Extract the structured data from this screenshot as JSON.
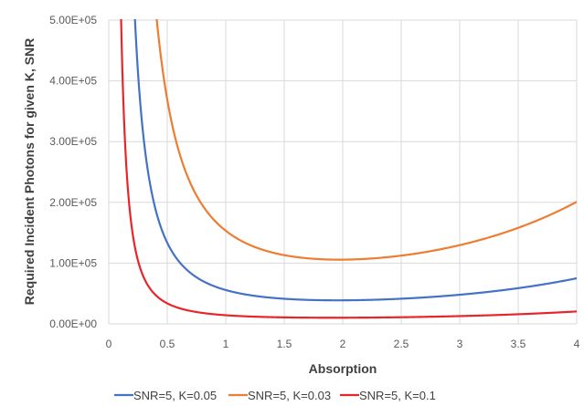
{
  "chart_data": {
    "type": "line",
    "title": "",
    "xlabel": "Absorption",
    "ylabel": "Required Incident Photons for given K, SNR",
    "xlim": [
      0,
      4
    ],
    "ylim": [
      0,
      500000
    ],
    "x_ticks": [
      0,
      0.5,
      1,
      1.5,
      2,
      2.5,
      3,
      3.5,
      4
    ],
    "x_tick_labels": [
      "0",
      "0.5",
      "1",
      "1.5",
      "2",
      "2.5",
      "3",
      "3.5",
      "4"
    ],
    "y_ticks": [
      0,
      100000,
      200000,
      300000,
      400000,
      500000
    ],
    "y_tick_labels": [
      "0.00E+00",
      "1.00E+05",
      "2.00E+05",
      "3.00E+05",
      "4.00E+05",
      "5.00E+05"
    ],
    "grid": {
      "x": true,
      "y": true
    },
    "legend_position": "bottom",
    "series": [
      {
        "name": "SNR=5, K=0.05",
        "color": "#4472c4",
        "snr": 5,
        "k": 0.05
      },
      {
        "name": "SNR=5, K=0.03",
        "color": "#ed7d31",
        "snr": 5,
        "k": 0.03
      },
      {
        "name": "SNR=5, K=0.1",
        "color": "#e8262a",
        "snr": 5,
        "k": 0.1
      }
    ]
  }
}
